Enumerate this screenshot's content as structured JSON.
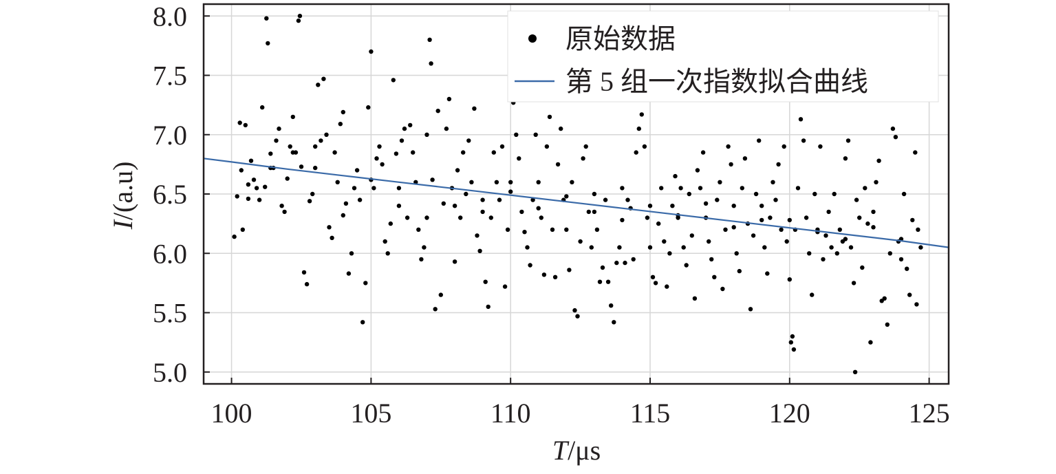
{
  "chart_data": {
    "type": "scatter",
    "xlabel": {
      "var": "T",
      "unit": "/μs"
    },
    "ylabel": {
      "var": "I",
      "unit": "/(a.u)"
    },
    "xlim": [
      99,
      125.7
    ],
    "ylim": [
      4.9,
      8.1
    ],
    "xticks": [
      100,
      105,
      110,
      115,
      120,
      125
    ],
    "yticks": [
      5.0,
      5.5,
      6.0,
      6.5,
      7.0,
      7.5,
      8.0
    ],
    "xtick_labels": [
      "100",
      "105",
      "110",
      "115",
      "120",
      "125"
    ],
    "ytick_labels": [
      "5.0",
      "5.5",
      "6.0",
      "6.5",
      "7.0",
      "7.5",
      "8.0"
    ],
    "grid": true,
    "legend_position": "top-right",
    "series": [
      {
        "name": "原始数据",
        "kind": "scatter",
        "color": "#000000",
        "points": [
          [
            100.1,
            6.14
          ],
          [
            100.2,
            6.48
          ],
          [
            100.3,
            7.1
          ],
          [
            100.35,
            6.7
          ],
          [
            100.4,
            6.2
          ],
          [
            100.5,
            7.08
          ],
          [
            100.6,
            6.46
          ],
          [
            100.7,
            6.78
          ],
          [
            100.8,
            6.62
          ],
          [
            100.9,
            6.55
          ],
          [
            101.0,
            6.45
          ],
          [
            101.1,
            7.23
          ],
          [
            101.2,
            6.56
          ],
          [
            101.25,
            7.98
          ],
          [
            101.3,
            7.77
          ],
          [
            101.4,
            6.84
          ],
          [
            101.5,
            6.72
          ],
          [
            101.6,
            6.95
          ],
          [
            101.7,
            7.05
          ],
          [
            101.8,
            6.4
          ],
          [
            101.9,
            6.35
          ],
          [
            102.0,
            6.63
          ],
          [
            102.1,
            6.9
          ],
          [
            102.2,
            7.15
          ],
          [
            102.3,
            6.85
          ],
          [
            102.4,
            7.96
          ],
          [
            102.45,
            8.0
          ],
          [
            102.5,
            6.73
          ],
          [
            102.6,
            5.84
          ],
          [
            102.7,
            5.74
          ],
          [
            102.8,
            6.44
          ],
          [
            102.9,
            6.5
          ],
          [
            103.0,
            6.9
          ],
          [
            103.1,
            7.42
          ],
          [
            103.2,
            6.95
          ],
          [
            103.3,
            7.47
          ],
          [
            103.4,
            7.0
          ],
          [
            103.5,
            6.22
          ],
          [
            103.6,
            6.13
          ],
          [
            103.7,
            6.85
          ],
          [
            103.8,
            6.6
          ],
          [
            103.9,
            7.09
          ],
          [
            104.0,
            7.19
          ],
          [
            104.1,
            6.42
          ],
          [
            104.2,
            5.83
          ],
          [
            104.3,
            6.0
          ],
          [
            104.4,
            6.55
          ],
          [
            104.5,
            6.7
          ],
          [
            104.6,
            6.45
          ],
          [
            104.7,
            5.42
          ],
          [
            104.8,
            5.75
          ],
          [
            104.9,
            7.23
          ],
          [
            105.0,
            7.7
          ],
          [
            105.1,
            6.55
          ],
          [
            105.2,
            6.8
          ],
          [
            105.3,
            6.9
          ],
          [
            105.4,
            6.75
          ],
          [
            105.5,
            6.1
          ],
          [
            105.6,
            6.0
          ],
          [
            105.7,
            6.25
          ],
          [
            105.8,
            7.46
          ],
          [
            105.9,
            6.84
          ],
          [
            106.0,
            6.55
          ],
          [
            106.1,
            6.95
          ],
          [
            106.2,
            7.05
          ],
          [
            106.3,
            6.3
          ],
          [
            106.4,
            7.08
          ],
          [
            106.5,
            6.85
          ],
          [
            106.6,
            6.6
          ],
          [
            106.7,
            6.2
          ],
          [
            106.8,
            5.95
          ],
          [
            106.9,
            6.05
          ],
          [
            107.0,
            7.0
          ],
          [
            107.1,
            7.8
          ],
          [
            107.15,
            7.6
          ],
          [
            107.2,
            6.62
          ],
          [
            107.3,
            5.53
          ],
          [
            107.4,
            7.2
          ],
          [
            107.5,
            5.65
          ],
          [
            107.6,
            6.42
          ],
          [
            107.7,
            7.05
          ],
          [
            107.8,
            7.3
          ],
          [
            107.9,
            6.55
          ],
          [
            108.0,
            5.93
          ],
          [
            108.1,
            6.7
          ],
          [
            108.2,
            6.3
          ],
          [
            108.3,
            6.85
          ],
          [
            108.4,
            6.5
          ],
          [
            108.5,
            6.95
          ],
          [
            108.6,
            6.6
          ],
          [
            108.7,
            7.22
          ],
          [
            108.8,
            6.15
          ],
          [
            108.9,
            6.02
          ],
          [
            109.0,
            6.45
          ],
          [
            109.1,
            5.76
          ],
          [
            109.2,
            5.55
          ],
          [
            109.3,
            6.3
          ],
          [
            109.4,
            6.85
          ],
          [
            109.5,
            6.6
          ],
          [
            109.6,
            6.45
          ],
          [
            109.7,
            6.9
          ],
          [
            109.8,
            5.72
          ],
          [
            109.9,
            6.2
          ],
          [
            110.0,
            6.6
          ],
          [
            110.1,
            7.27
          ],
          [
            110.2,
            7.0
          ],
          [
            110.3,
            6.8
          ],
          [
            110.4,
            6.35
          ],
          [
            110.5,
            6.18
          ],
          [
            110.6,
            6.05
          ],
          [
            110.7,
            5.9
          ],
          [
            110.8,
            6.45
          ],
          [
            110.9,
            7.0
          ],
          [
            111.0,
            6.6
          ],
          [
            111.1,
            6.3
          ],
          [
            111.2,
            5.82
          ],
          [
            111.3,
            6.9
          ],
          [
            111.4,
            7.15
          ],
          [
            111.5,
            6.2
          ],
          [
            111.6,
            5.8
          ],
          [
            111.7,
            6.75
          ],
          [
            111.8,
            7.05
          ],
          [
            111.9,
            6.45
          ],
          [
            112.0,
            6.2
          ],
          [
            112.1,
            5.86
          ],
          [
            112.2,
            6.6
          ],
          [
            112.3,
            5.52
          ],
          [
            112.4,
            5.47
          ],
          [
            112.5,
            6.1
          ],
          [
            112.6,
            6.8
          ],
          [
            112.7,
            6.9
          ],
          [
            112.8,
            6.35
          ],
          [
            112.9,
            6.05
          ],
          [
            113.0,
            6.5
          ],
          [
            113.1,
            6.2
          ],
          [
            113.2,
            5.76
          ],
          [
            113.3,
            5.88
          ],
          [
            113.4,
            6.45
          ],
          [
            113.5,
            5.76
          ],
          [
            113.6,
            5.56
          ],
          [
            113.7,
            5.42
          ],
          [
            113.8,
            5.92
          ],
          [
            113.9,
            6.05
          ],
          [
            114.0,
            6.55
          ],
          [
            114.1,
            5.92
          ],
          [
            114.2,
            6.45
          ],
          [
            114.3,
            6.38
          ],
          [
            114.4,
            5.95
          ],
          [
            114.5,
            6.85
          ],
          [
            114.6,
            7.05
          ],
          [
            114.7,
            7.17
          ],
          [
            114.8,
            6.9
          ],
          [
            114.9,
            6.3
          ],
          [
            115.0,
            6.05
          ],
          [
            115.1,
            5.8
          ],
          [
            115.2,
            5.75
          ],
          [
            115.3,
            6.25
          ],
          [
            115.4,
            6.55
          ],
          [
            115.5,
            6.1
          ],
          [
            115.6,
            5.72
          ],
          [
            115.7,
            6.0
          ],
          [
            115.8,
            6.4
          ],
          [
            115.9,
            6.65
          ],
          [
            116.0,
            6.3
          ],
          [
            116.1,
            6.55
          ],
          [
            116.2,
            6.05
          ],
          [
            116.3,
            5.9
          ],
          [
            116.4,
            6.5
          ],
          [
            116.5,
            6.15
          ],
          [
            116.6,
            5.62
          ],
          [
            116.7,
            6.7
          ],
          [
            116.8,
            6.55
          ],
          [
            116.9,
            6.85
          ],
          [
            117.0,
            6.3
          ],
          [
            117.1,
            6.1
          ],
          [
            117.2,
            5.95
          ],
          [
            117.3,
            5.8
          ],
          [
            117.4,
            6.45
          ],
          [
            117.5,
            6.6
          ],
          [
            117.6,
            5.7
          ],
          [
            117.7,
            6.2
          ],
          [
            117.8,
            6.9
          ],
          [
            117.9,
            6.75
          ],
          [
            118.0,
            6.4
          ],
          [
            118.1,
            6.0
          ],
          [
            118.2,
            5.85
          ],
          [
            118.3,
            6.55
          ],
          [
            118.4,
            6.8
          ],
          [
            118.5,
            6.25
          ],
          [
            118.6,
            5.53
          ],
          [
            118.7,
            6.15
          ],
          [
            118.8,
            6.5
          ],
          [
            118.9,
            6.95
          ],
          [
            119.0,
            6.4
          ],
          [
            119.1,
            6.05
          ],
          [
            119.2,
            5.83
          ],
          [
            119.3,
            6.3
          ],
          [
            119.4,
            6.6
          ],
          [
            119.5,
            6.45
          ],
          [
            119.6,
            6.75
          ],
          [
            119.7,
            6.2
          ],
          [
            119.8,
            6.9
          ],
          [
            119.9,
            6.1
          ],
          [
            120.0,
            5.78
          ],
          [
            120.05,
            5.25
          ],
          [
            120.1,
            5.3
          ],
          [
            120.15,
            5.19
          ],
          [
            120.2,
            6.2
          ],
          [
            120.3,
            6.55
          ],
          [
            120.4,
            7.13
          ],
          [
            120.5,
            6.95
          ],
          [
            120.6,
            6.3
          ],
          [
            120.7,
            6.0
          ],
          [
            120.8,
            5.65
          ],
          [
            120.9,
            6.5
          ],
          [
            121.0,
            6.2
          ],
          [
            121.1,
            6.9
          ],
          [
            121.2,
            5.95
          ],
          [
            121.3,
            6.15
          ],
          [
            121.4,
            6.35
          ],
          [
            121.5,
            6.05
          ],
          [
            121.6,
            6.5
          ],
          [
            121.7,
            6.0
          ],
          [
            121.8,
            6.2
          ],
          [
            121.9,
            6.1
          ],
          [
            122.0,
            6.8
          ],
          [
            122.1,
            6.95
          ],
          [
            122.2,
            6.05
          ],
          [
            122.3,
            5.75
          ],
          [
            122.35,
            5.0
          ],
          [
            122.4,
            6.45
          ],
          [
            122.5,
            6.3
          ],
          [
            122.6,
            5.88
          ],
          [
            122.7,
            6.55
          ],
          [
            122.8,
            6.25
          ],
          [
            122.9,
            5.25
          ],
          [
            123.0,
            6.35
          ],
          [
            123.1,
            6.6
          ],
          [
            123.2,
            6.78
          ],
          [
            123.3,
            5.6
          ],
          [
            123.4,
            5.62
          ],
          [
            123.5,
            5.4
          ],
          [
            123.6,
            6.0
          ],
          [
            123.7,
            7.05
          ],
          [
            123.8,
            6.98
          ],
          [
            123.9,
            6.1
          ],
          [
            124.0,
            5.95
          ],
          [
            124.1,
            6.5
          ],
          [
            124.2,
            5.87
          ],
          [
            124.3,
            5.65
          ],
          [
            124.4,
            6.28
          ],
          [
            124.5,
            6.85
          ],
          [
            124.55,
            5.57
          ],
          [
            124.6,
            6.2
          ],
          [
            124.7,
            6.05
          ],
          [
            100.6,
            6.58
          ],
          [
            101.4,
            6.72
          ],
          [
            102.2,
            6.85
          ],
          [
            103.0,
            6.72
          ],
          [
            104.0,
            6.32
          ],
          [
            105.0,
            6.62
          ],
          [
            106.0,
            6.4
          ],
          [
            107.0,
            6.3
          ],
          [
            108.0,
            6.4
          ],
          [
            109.0,
            6.35
          ],
          [
            110.0,
            6.52
          ],
          [
            111.0,
            6.38
          ],
          [
            112.0,
            6.48
          ],
          [
            113.0,
            6.35
          ],
          [
            114.0,
            6.28
          ],
          [
            115.0,
            6.4
          ],
          [
            116.0,
            6.32
          ],
          [
            117.0,
            6.42
          ],
          [
            118.0,
            6.22
          ],
          [
            119.0,
            6.28
          ],
          [
            120.0,
            6.28
          ],
          [
            121.0,
            6.18
          ],
          [
            122.0,
            6.12
          ],
          [
            123.0,
            6.22
          ],
          [
            124.0,
            6.12
          ]
        ]
      },
      {
        "name": "第 5 组一次指数拟合曲线",
        "kind": "line",
        "color": "#3a6aa8",
        "x": [
          99,
          100,
          102,
          104,
          106,
          108,
          110,
          112,
          114,
          116,
          118,
          120,
          122,
          124,
          125.7
        ],
        "y": [
          6.8,
          6.77,
          6.71,
          6.655,
          6.6,
          6.545,
          6.49,
          6.435,
          6.38,
          6.325,
          6.27,
          6.215,
          6.16,
          6.105,
          6.05
        ]
      }
    ]
  }
}
